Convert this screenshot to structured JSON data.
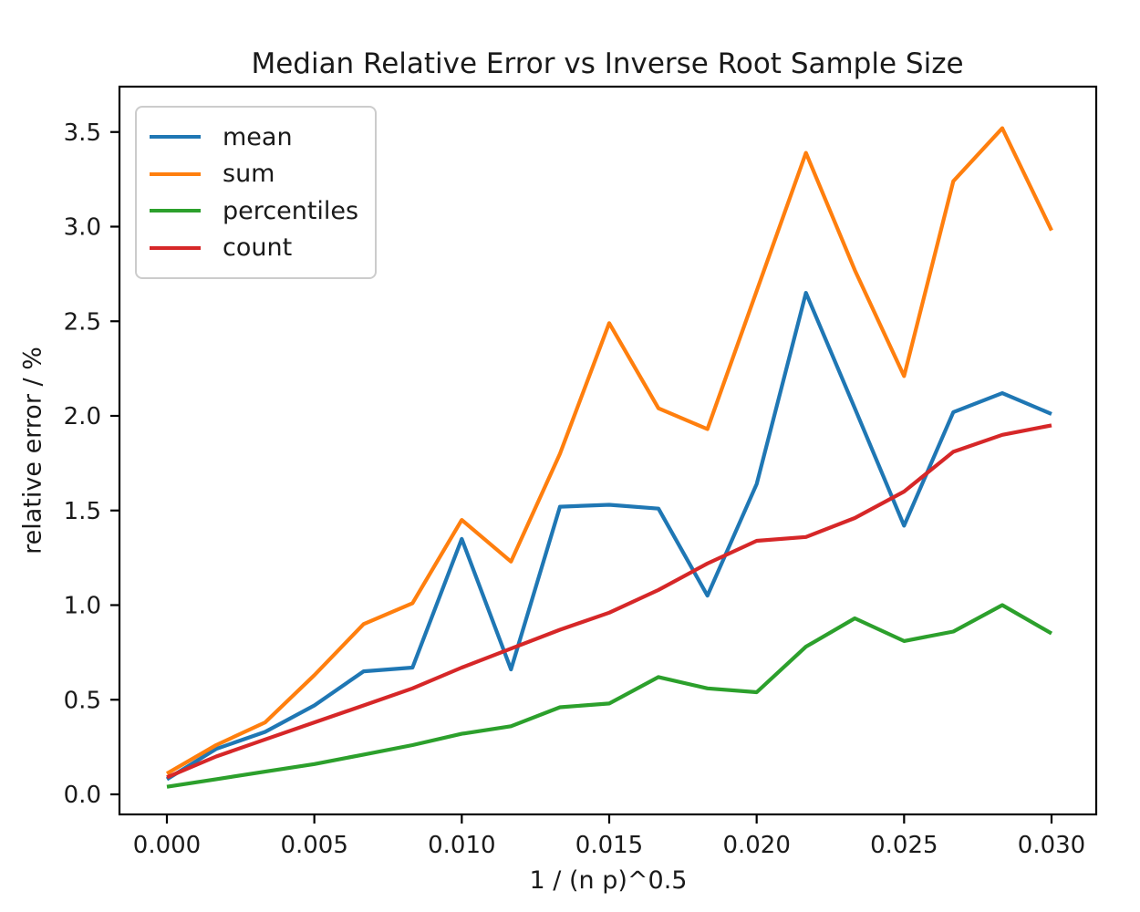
{
  "background_color": "#ffffff",
  "chart_data": {
    "type": "line",
    "title": "Median Relative Error vs Inverse Root Sample Size",
    "xlabel": "1 / (n p)^0.5",
    "ylabel": "relative error / %",
    "grid": false,
    "legend_position": "upper left",
    "xlim": [
      -0.0016,
      0.0315
    ],
    "ylim": [
      -0.106,
      3.74
    ],
    "xticks": [
      "0.000",
      "0.005",
      "0.010",
      "0.015",
      "0.020",
      "0.025",
      "0.030"
    ],
    "yticks": [
      "0.0",
      "0.5",
      "1.0",
      "1.5",
      "2.0",
      "2.5",
      "3.0",
      "3.5"
    ],
    "x": [
      0.0,
      0.00167,
      0.00333,
      0.005,
      0.00667,
      0.00833,
      0.01,
      0.01167,
      0.01333,
      0.015,
      0.01667,
      0.01833,
      0.02,
      0.02167,
      0.02333,
      0.025,
      0.02667,
      0.02833,
      0.03
    ],
    "series": [
      {
        "name": "mean",
        "color": "#1f77b4",
        "values": [
          0.08,
          0.24,
          0.33,
          0.47,
          0.65,
          0.67,
          1.35,
          0.66,
          1.52,
          1.53,
          1.51,
          1.05,
          1.64,
          2.65,
          2.04,
          1.42,
          2.02,
          2.12,
          2.01
        ]
      },
      {
        "name": "sum",
        "color": "#ff7f0e",
        "values": [
          0.11,
          0.26,
          0.38,
          0.63,
          0.9,
          1.01,
          1.45,
          1.23,
          1.8,
          2.49,
          2.04,
          1.93,
          2.66,
          3.39,
          2.77,
          2.21,
          3.24,
          3.52,
          2.98
        ]
      },
      {
        "name": "percentiles",
        "color": "#2ca02c",
        "values": [
          0.04,
          0.08,
          0.12,
          0.16,
          0.21,
          0.26,
          0.32,
          0.36,
          0.46,
          0.48,
          0.62,
          0.56,
          0.54,
          0.78,
          0.93,
          0.81,
          0.86,
          1.0,
          0.85
        ]
      },
      {
        "name": "count",
        "color": "#d62728",
        "values": [
          0.09,
          0.2,
          0.29,
          0.38,
          0.47,
          0.56,
          0.67,
          0.77,
          0.87,
          0.96,
          1.08,
          1.22,
          1.34,
          1.36,
          1.46,
          1.6,
          1.81,
          1.9,
          1.95
        ]
      }
    ]
  }
}
